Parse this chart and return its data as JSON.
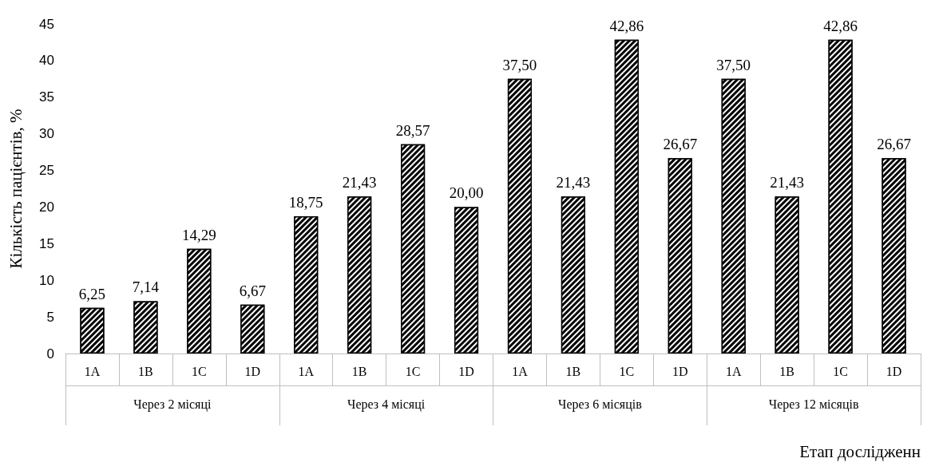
{
  "chart_data": {
    "type": "bar",
    "ylabel": "Кількість пацієнтів, %",
    "xlabel": "Етап дослідженн",
    "categories": [
      "1A",
      "1B",
      "1C",
      "1D",
      "1A",
      "1B",
      "1C",
      "1D",
      "1A",
      "1B",
      "1C",
      "1D",
      "1A",
      "1B",
      "1C",
      "1D"
    ],
    "annotations": [
      "Через 2 місяці",
      "Через 4 місяці",
      "Через 6 місяців",
      "Через 12 місяців"
    ],
    "series": [
      {
        "color": "#000000",
        "values": [
          6.25,
          7.14,
          14.29,
          6.67,
          18.75,
          21.43,
          28.57,
          20.0,
          37.5,
          21.43,
          42.86,
          26.67,
          37.5,
          21.43,
          42.86,
          26.67
        ],
        "value_labels": [
          "6,25",
          "7,14",
          "14,29",
          "6,67",
          "18,75",
          "21,43",
          "28,57",
          "20,00",
          "37,50",
          "21,43",
          "42,86",
          "26,67",
          "37,50",
          "21,43",
          "42,86",
          "26,67"
        ]
      }
    ],
    "ylim": [
      0,
      45
    ],
    "yticks": [
      0,
      5,
      10,
      15,
      20,
      25,
      30,
      35,
      40,
      45
    ],
    "grid": false
  }
}
